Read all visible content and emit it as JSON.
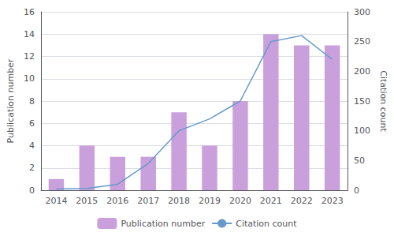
{
  "chart_data": {
    "type": "bar",
    "categories": [
      "2014",
      "2015",
      "2016",
      "2017",
      "2018",
      "2019",
      "2020",
      "2021",
      "2022",
      "2023"
    ],
    "series": [
      {
        "name": "Publication number",
        "type": "bar",
        "color": "#c9a0dc",
        "values": [
          1,
          4,
          3,
          3,
          7,
          4,
          8,
          14,
          13,
          13
        ]
      },
      {
        "name": "Citation count",
        "type": "line",
        "color": "#6699cc",
        "axis": "y2",
        "values": [
          2,
          3,
          10,
          45,
          100,
          120,
          150,
          250,
          260,
          220
        ]
      }
    ],
    "ylabel": "Publication number",
    "y2label": "Citation count",
    "ylim": [
      0,
      16
    ],
    "yticks": [
      0,
      2,
      4,
      6,
      8,
      10,
      12,
      14,
      16
    ],
    "y2lim": [
      0,
      300
    ],
    "y2ticks": [
      0,
      50,
      100,
      150,
      200,
      250,
      300
    ],
    "grid": true,
    "legend": "bottom"
  }
}
